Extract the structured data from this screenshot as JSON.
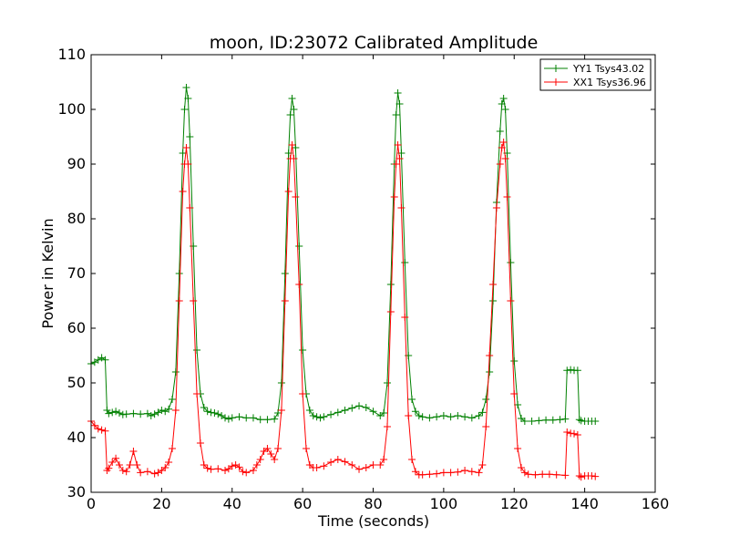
{
  "chart_data": {
    "type": "line",
    "title": "moon, ID:23072 Calibrated Amplitude",
    "xlabel": "Time (seconds)",
    "ylabel": "Power in Kelvin",
    "xlim": [
      0,
      160
    ],
    "ylim": [
      30,
      110
    ],
    "x_ticks": [
      "0",
      "20",
      "40",
      "60",
      "80",
      "100",
      "120",
      "140",
      "160"
    ],
    "y_ticks": [
      "30",
      "40",
      "50",
      "60",
      "70",
      "80",
      "90",
      "100",
      "110"
    ],
    "legend_position": "top-right",
    "grid": false,
    "marker": "plus",
    "series": [
      {
        "name": "YY1 Tsys43.02",
        "color": "#008000",
        "points": [
          [
            0,
            53.5
          ],
          [
            1,
            53.8
          ],
          [
            2,
            54.2
          ],
          [
            3,
            54.6
          ],
          [
            4,
            54.2
          ],
          [
            4.5,
            45
          ],
          [
            5,
            44.4
          ],
          [
            6,
            44.6
          ],
          [
            7,
            44.8
          ],
          [
            8,
            44.5
          ],
          [
            9,
            44.2
          ],
          [
            10,
            44.3
          ],
          [
            12,
            44.4
          ],
          [
            14,
            44.3
          ],
          [
            16,
            44.4
          ],
          [
            17,
            44
          ],
          [
            18,
            44.3
          ],
          [
            19,
            44.6
          ],
          [
            20,
            45
          ],
          [
            21,
            44.8
          ],
          [
            22,
            45.2
          ],
          [
            23,
            47
          ],
          [
            24,
            52
          ],
          [
            25,
            70
          ],
          [
            26,
            92
          ],
          [
            26.5,
            100
          ],
          [
            27,
            104
          ],
          [
            27.5,
            102
          ],
          [
            28,
            95
          ],
          [
            29,
            75
          ],
          [
            30,
            56
          ],
          [
            31,
            48
          ],
          [
            32,
            45.5
          ],
          [
            33,
            44.8
          ],
          [
            34,
            44.6
          ],
          [
            35,
            44.5
          ],
          [
            36,
            44.3
          ],
          [
            37,
            44
          ],
          [
            38,
            43.6
          ],
          [
            39,
            43.4
          ],
          [
            40,
            43.6
          ],
          [
            42,
            43.8
          ],
          [
            44,
            43.6
          ],
          [
            46,
            43.6
          ],
          [
            48,
            43.3
          ],
          [
            50,
            43.3
          ],
          [
            52,
            43.4
          ],
          [
            53,
            44.5
          ],
          [
            54,
            50
          ],
          [
            55,
            70
          ],
          [
            56,
            92
          ],
          [
            56.5,
            99
          ],
          [
            57,
            102
          ],
          [
            57.5,
            100
          ],
          [
            58,
            93
          ],
          [
            59,
            75
          ],
          [
            60,
            56
          ],
          [
            61,
            48
          ],
          [
            62,
            45
          ],
          [
            63,
            44
          ],
          [
            64,
            43.8
          ],
          [
            65,
            43.6
          ],
          [
            66,
            43.8
          ],
          [
            68,
            44.2
          ],
          [
            70,
            44.6
          ],
          [
            72,
            45
          ],
          [
            74,
            45.4
          ],
          [
            76,
            45.8
          ],
          [
            78,
            45.5
          ],
          [
            80,
            44.8
          ],
          [
            82,
            44
          ],
          [
            83,
            44.5
          ],
          [
            84,
            50
          ],
          [
            85,
            68
          ],
          [
            86,
            90
          ],
          [
            86.5,
            99
          ],
          [
            87,
            103
          ],
          [
            87.5,
            101
          ],
          [
            88,
            92
          ],
          [
            89,
            72
          ],
          [
            90,
            55
          ],
          [
            91,
            47
          ],
          [
            92,
            44.8
          ],
          [
            93,
            44
          ],
          [
            94,
            43.8
          ],
          [
            96,
            43.6
          ],
          [
            98,
            43.8
          ],
          [
            100,
            44
          ],
          [
            102,
            43.8
          ],
          [
            104,
            44
          ],
          [
            106,
            43.8
          ],
          [
            108,
            43.6
          ],
          [
            110,
            44
          ],
          [
            111,
            44.6
          ],
          [
            112,
            47
          ],
          [
            113,
            52
          ],
          [
            114,
            65
          ],
          [
            115,
            83
          ],
          [
            116,
            96
          ],
          [
            116.5,
            101
          ],
          [
            117,
            102
          ],
          [
            117.5,
            100
          ],
          [
            118,
            92
          ],
          [
            119,
            72
          ],
          [
            120,
            54
          ],
          [
            121,
            46
          ],
          [
            122,
            43.5
          ],
          [
            123,
            43
          ],
          [
            125,
            43
          ],
          [
            127,
            43.1
          ],
          [
            129,
            43.2
          ],
          [
            131,
            43.2
          ],
          [
            133,
            43.3
          ],
          [
            134.5,
            43.4
          ],
          [
            135,
            52.3
          ],
          [
            136,
            52.4
          ],
          [
            137,
            52.3
          ],
          [
            138,
            52.3
          ],
          [
            138.5,
            43.3
          ],
          [
            139,
            43.1
          ],
          [
            140,
            43
          ],
          [
            141,
            43
          ],
          [
            142,
            43
          ],
          [
            143,
            43
          ]
        ]
      },
      {
        "name": "XX1 Tsys36.96",
        "color": "#ff0000",
        "points": [
          [
            0,
            43
          ],
          [
            1,
            42.2
          ],
          [
            2,
            41.6
          ],
          [
            3,
            41.4
          ],
          [
            4,
            41.2
          ],
          [
            4.5,
            34
          ],
          [
            5,
            34.4
          ],
          [
            6,
            35.5
          ],
          [
            7,
            36.2
          ],
          [
            8,
            35
          ],
          [
            9,
            34
          ],
          [
            10,
            33.8
          ],
          [
            11,
            35
          ],
          [
            12,
            37.5
          ],
          [
            13,
            35
          ],
          [
            14,
            33.6
          ],
          [
            16,
            33.8
          ],
          [
            18,
            33.4
          ],
          [
            19,
            33.6
          ],
          [
            20,
            34
          ],
          [
            21,
            34.5
          ],
          [
            22,
            35.5
          ],
          [
            23,
            38
          ],
          [
            24,
            45
          ],
          [
            25,
            65
          ],
          [
            26,
            85
          ],
          [
            26.5,
            90
          ],
          [
            27,
            93
          ],
          [
            27.5,
            90
          ],
          [
            28,
            82
          ],
          [
            29,
            65
          ],
          [
            30,
            48
          ],
          [
            31,
            39
          ],
          [
            32,
            35
          ],
          [
            33,
            34.4
          ],
          [
            34,
            34.2
          ],
          [
            36,
            34.3
          ],
          [
            38,
            34
          ],
          [
            39,
            34.3
          ],
          [
            40,
            34.8
          ],
          [
            41,
            35
          ],
          [
            42,
            34.6
          ],
          [
            43,
            33.8
          ],
          [
            44,
            33.6
          ],
          [
            46,
            34
          ],
          [
            47,
            35
          ],
          [
            48,
            36
          ],
          [
            49,
            37.5
          ],
          [
            50,
            38
          ],
          [
            51,
            37
          ],
          [
            52,
            36
          ],
          [
            53,
            38
          ],
          [
            54,
            45
          ],
          [
            55,
            65
          ],
          [
            56,
            85
          ],
          [
            56.5,
            91
          ],
          [
            57,
            93.5
          ],
          [
            57.5,
            91
          ],
          [
            58,
            84
          ],
          [
            59,
            68
          ],
          [
            60,
            48
          ],
          [
            61,
            38
          ],
          [
            62,
            35
          ],
          [
            63,
            34.5
          ],
          [
            64,
            34.5
          ],
          [
            66,
            34.8
          ],
          [
            68,
            35.5
          ],
          [
            70,
            36
          ],
          [
            72,
            35.6
          ],
          [
            74,
            35
          ],
          [
            76,
            34.2
          ],
          [
            78,
            34.5
          ],
          [
            80,
            35
          ],
          [
            82,
            35
          ],
          [
            83,
            36
          ],
          [
            84,
            42
          ],
          [
            85,
            63
          ],
          [
            86,
            84
          ],
          [
            86.5,
            90
          ],
          [
            87,
            93.5
          ],
          [
            87.5,
            91
          ],
          [
            88,
            82
          ],
          [
            89,
            62
          ],
          [
            90,
            44
          ],
          [
            91,
            36
          ],
          [
            92,
            33.8
          ],
          [
            93,
            33.2
          ],
          [
            94,
            33.2
          ],
          [
            96,
            33.3
          ],
          [
            98,
            33.4
          ],
          [
            100,
            33.6
          ],
          [
            102,
            33.6
          ],
          [
            104,
            33.7
          ],
          [
            106,
            34
          ],
          [
            108,
            33.8
          ],
          [
            110,
            33.6
          ],
          [
            111,
            35
          ],
          [
            112,
            42
          ],
          [
            113,
            55
          ],
          [
            114,
            68
          ],
          [
            115,
            82
          ],
          [
            116,
            90
          ],
          [
            116.5,
            93
          ],
          [
            117,
            94
          ],
          [
            117.5,
            91
          ],
          [
            118,
            84
          ],
          [
            119,
            65
          ],
          [
            120,
            48
          ],
          [
            121,
            38
          ],
          [
            122,
            34.5
          ],
          [
            123,
            33.6
          ],
          [
            124,
            33.3
          ],
          [
            126,
            33.2
          ],
          [
            128,
            33.3
          ],
          [
            130,
            33.3
          ],
          [
            132,
            33.2
          ],
          [
            134.5,
            33.1
          ],
          [
            135,
            41
          ],
          [
            136,
            40.8
          ],
          [
            137,
            40.7
          ],
          [
            138,
            40.5
          ],
          [
            138.5,
            33
          ],
          [
            139,
            32.8
          ],
          [
            140,
            33
          ],
          [
            141,
            33
          ],
          [
            142,
            33
          ],
          [
            143,
            32.9
          ]
        ]
      }
    ]
  }
}
